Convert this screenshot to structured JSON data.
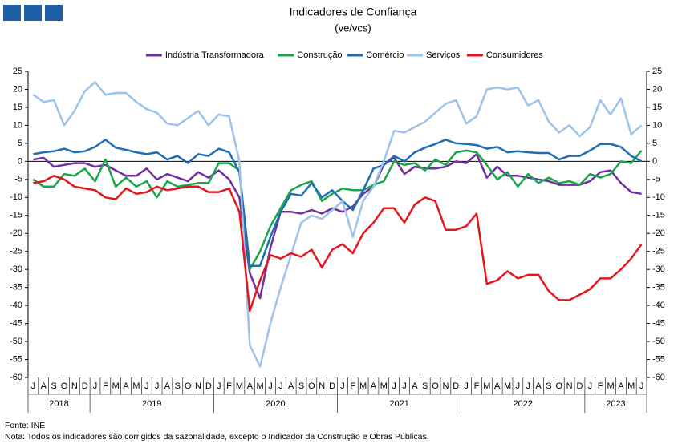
{
  "chart_data": {
    "type": "line",
    "title": "Indicadores de Confiança",
    "subtitle": "(ve/vcs)",
    "categories": [
      "J",
      "A",
      "S",
      "O",
      "N",
      "D",
      "J",
      "F",
      "M",
      "A",
      "M",
      "J",
      "J",
      "A",
      "S",
      "O",
      "N",
      "D",
      "J",
      "F",
      "M",
      "A",
      "M",
      "J",
      "J",
      "A",
      "S",
      "O",
      "N",
      "D",
      "J",
      "F",
      "M",
      "A",
      "M",
      "J",
      "J",
      "A",
      "S",
      "O",
      "N",
      "D",
      "J",
      "F",
      "M",
      "A",
      "M",
      "J",
      "J",
      "A",
      "S",
      "O",
      "N",
      "D",
      "J",
      "F",
      "M",
      "A",
      "M",
      "J"
    ],
    "years": [
      "2018",
      "2019",
      "2020",
      "2021",
      "2022",
      "2023"
    ],
    "ylim": [
      -60,
      25
    ],
    "yticks": [
      -60,
      -55,
      -50,
      -45,
      -40,
      -35,
      -30,
      -25,
      -20,
      -15,
      -10,
      -5,
      0,
      5,
      10,
      15,
      20,
      25
    ],
    "legend": "top",
    "series": [
      {
        "name": "Indústria Transformadora",
        "color": "#7030a0",
        "values": [
          0.5,
          1,
          -1.5,
          -1,
          -0.5,
          -0.5,
          -1.5,
          -1,
          -2.5,
          -4,
          -4,
          -2,
          -5,
          -3.5,
          -4.5,
          -5.5,
          -3,
          -4.5,
          -2.5,
          -5,
          -10,
          -31,
          -38,
          -24,
          -14,
          -14,
          -14.5,
          -13.5,
          -14.5,
          -13,
          -14,
          -12.5,
          -9,
          -7,
          -1,
          1,
          -3.5,
          -1.5,
          -2,
          -2,
          -1.5,
          0,
          -0.5,
          2,
          -4.5,
          -1.5,
          -4,
          -4,
          -4.5,
          -5,
          -5.5,
          -6.5,
          -6.5,
          -6.5,
          -5.5,
          -3,
          -2.5,
          -6,
          -8.5,
          -9
        ]
      },
      {
        "name": "Construção",
        "color": "#1aa64a",
        "values": [
          -5,
          -7,
          -7,
          -3.5,
          -4,
          -2,
          -5.5,
          0.5,
          -7,
          -4.5,
          -7,
          -5.5,
          -10,
          -5.5,
          -7,
          -6.5,
          -6,
          -6,
          -0.5,
          -0.5,
          -2.5,
          -30,
          -25,
          -18,
          -13,
          -8,
          -6.5,
          -5.5,
          -11,
          -9,
          -7.5,
          -8,
          -8,
          -6.5,
          -5.5,
          0,
          -1,
          -0.5,
          -2.5,
          0.5,
          -1,
          2.5,
          3,
          2.5,
          -1,
          -5,
          -3,
          -7,
          -3.5,
          -6,
          -4.5,
          -6,
          -5.5,
          -6.5,
          -3.5,
          -4.5,
          -3.5,
          0,
          -0.5,
          3
        ]
      },
      {
        "name": "Comércio",
        "color": "#1f6db3",
        "values": [
          2,
          2.5,
          2.8,
          3.5,
          2.5,
          2.8,
          4,
          6,
          3.8,
          3.2,
          2.5,
          2,
          2.5,
          0.5,
          1.5,
          -0.5,
          2,
          1.5,
          3.5,
          2.5,
          -3,
          -29,
          -29,
          -21,
          -14,
          -9,
          -9.5,
          -6,
          -10,
          -8,
          -11,
          -13.5,
          -8,
          -2,
          -1,
          1.5,
          0,
          2.5,
          3.8,
          4.8,
          6,
          5,
          4.8,
          4.5,
          3.5,
          4,
          2.5,
          2.8,
          2.5,
          2.3,
          2.3,
          0.5,
          1.5,
          1.5,
          3,
          4.8,
          4.8,
          4,
          1.5,
          0
        ]
      },
      {
        "name": "Serviços",
        "color": "#9dc3e8",
        "values": [
          18.5,
          16.5,
          17,
          10,
          14,
          19.5,
          22,
          18.5,
          19,
          19,
          16.5,
          14.5,
          13.5,
          10.5,
          10,
          12,
          14,
          10,
          13,
          12.5,
          0,
          -51,
          -57,
          -45,
          -35,
          -26,
          -17,
          -15,
          -16,
          -13.5,
          -11,
          -21,
          -11,
          -7,
          0,
          8.5,
          8,
          9.5,
          11,
          13.5,
          16,
          17,
          10.5,
          12.5,
          20,
          20.5,
          20,
          20.5,
          15.5,
          17,
          11,
          8,
          10,
          7,
          9.5,
          17,
          13,
          17.5,
          7.5,
          10
        ]
      },
      {
        "name": "Consumidores",
        "color": "#e3171c",
        "values": [
          -6,
          -5.5,
          -4,
          -5,
          -7,
          -7.5,
          -8,
          -10,
          -10.5,
          -7.5,
          -9,
          -8.5,
          -7,
          -8,
          -7.5,
          -7,
          -7,
          -8.5,
          -8.5,
          -7.5,
          -14,
          -41.5,
          -33,
          -26,
          -27,
          -25.5,
          -26.5,
          -24.5,
          -29.5,
          -24.5,
          -23,
          -25.5,
          -20,
          -17,
          -13,
          -13,
          -17,
          -12,
          -10,
          -11,
          -19,
          -19,
          -18,
          -14.5,
          -34,
          -33,
          -30.5,
          -32.5,
          -31.5,
          -31.5,
          -36,
          -38.5,
          -38.5,
          -37,
          -35.5,
          -32.5,
          -32.5,
          -30,
          -27,
          -23
        ]
      }
    ],
    "source": "Fonte: INE",
    "note": "Nota: Todos os indicadores são corrigidos da sazonalidade,  excepto o Indicador da Construção e Obras Públicas."
  }
}
